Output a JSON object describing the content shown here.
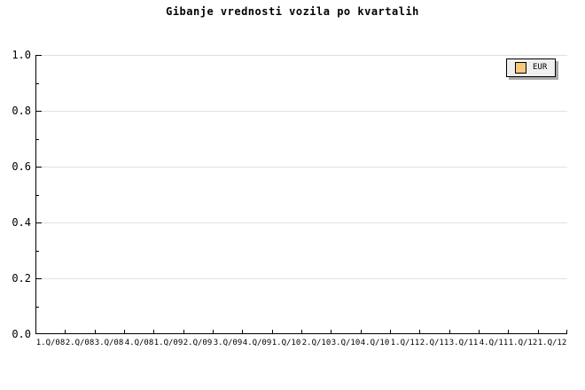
{
  "title": "Gibanje vrednosti vozila po kvartalih",
  "legend": {
    "position": "top-right",
    "items": [
      {
        "label": "EUR",
        "swatch_color": "#F8C97A"
      }
    ]
  },
  "colors": {
    "background": "#FFFFFF",
    "axis": "#000000",
    "text": "#000000",
    "grid": "#E0E0E0",
    "legend_bg": "#EFEFEF",
    "legend_border": "#000000",
    "legend_shadow": "#A9A9A9"
  },
  "chart_data": {
    "type": "bar",
    "title": "Gibanje vrednosti vozila po kvartalih",
    "categories": [
      "1.Q/08",
      "2.Q/08",
      "3.Q/08",
      "4.Q/08",
      "1.Q/09",
      "2.Q/09",
      "3.Q/09",
      "4.Q/09",
      "1.Q/10",
      "2.Q/10",
      "3.Q/10",
      "4.Q/10",
      "1.Q/11",
      "2.Q/11",
      "3.Q/11",
      "4.Q/11",
      "1.Q/12",
      "1.Q/12"
    ],
    "series": [
      {
        "name": "EUR",
        "color": "#F8C97A",
        "values": []
      }
    ],
    "xlabel": "",
    "ylabel": "",
    "ylim": [
      0.0,
      1.0
    ],
    "ytick_labels": [
      "0.0",
      "0.2",
      "0.4",
      "0.6",
      "0.8",
      "1.0"
    ],
    "minor_ytick_interval": 0.1,
    "grid": "horizontal-major-only",
    "legend_position": "top-right",
    "plot_is_empty": true
  }
}
